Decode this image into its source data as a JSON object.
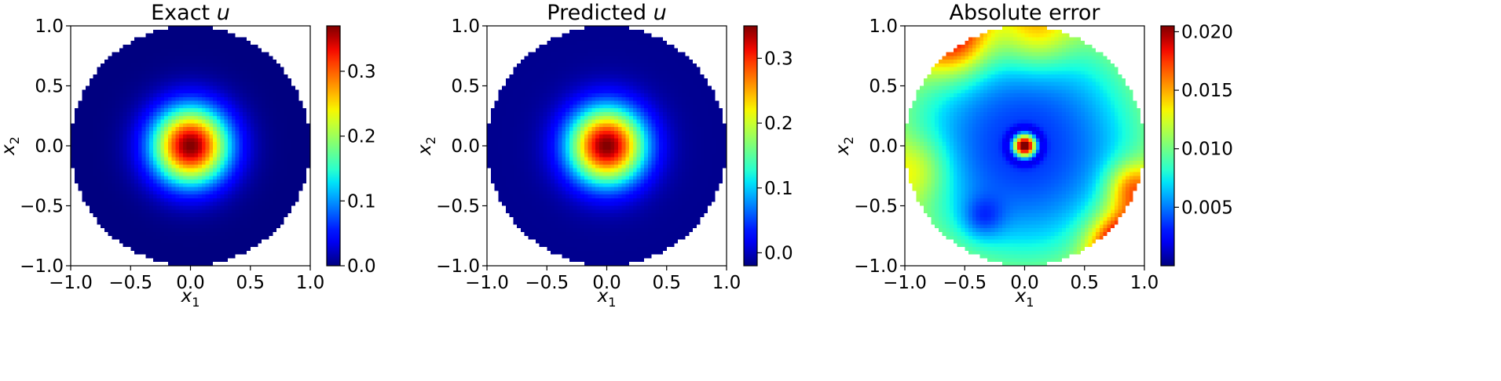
{
  "chart_data": [
    {
      "type": "heatmap",
      "title": "Exact u",
      "title_text": "Exact ",
      "title_var": "u",
      "xlabel": "x1",
      "ylabel": "x2",
      "xlabel_main": "x",
      "xlabel_sub": "1",
      "ylabel_main": "x",
      "ylabel_sub": "2",
      "xlim": [
        -1.0,
        1.0
      ],
      "ylim": [
        -1.0,
        1.0
      ],
      "xticks": [
        -1.0,
        -0.5,
        0.0,
        0.5,
        1.0
      ],
      "xtick_labels": [
        "−1.0",
        "−0.5",
        "0.0",
        "0.5",
        "1.0"
      ],
      "yticks": [
        -1.0,
        -0.5,
        0.0,
        0.5,
        1.0
      ],
      "ytick_labels": [
        "−1.0",
        "−0.5",
        "0.0",
        "0.5",
        "1.0"
      ],
      "domain": "unit disk",
      "colormap": "jet",
      "field": "exact",
      "value_range": [
        0.0,
        0.37
      ],
      "colorbar_ticks": [
        0.0,
        0.1,
        0.2,
        0.3
      ],
      "colorbar_tick_labels": [
        "0.0",
        "0.1",
        "0.2",
        "0.3"
      ]
    },
    {
      "type": "heatmap",
      "title": "Predicted u",
      "title_text": "Predicted ",
      "title_var": "u",
      "xlabel": "x1",
      "ylabel": "x2",
      "xlabel_main": "x",
      "xlabel_sub": "1",
      "ylabel_main": "x",
      "ylabel_sub": "2",
      "xlim": [
        -1.0,
        1.0
      ],
      "ylim": [
        -1.0,
        1.0
      ],
      "xticks": [
        -1.0,
        -0.5,
        0.0,
        0.5,
        1.0
      ],
      "xtick_labels": [
        "−1.0",
        "−0.5",
        "0.0",
        "0.5",
        "1.0"
      ],
      "yticks": [
        -1.0,
        -0.5,
        0.0,
        0.5,
        1.0
      ],
      "ytick_labels": [
        "−1.0",
        "−0.5",
        "0.0",
        "0.5",
        "1.0"
      ],
      "domain": "unit disk",
      "colormap": "jet",
      "field": "predicted",
      "value_range": [
        -0.02,
        0.35
      ],
      "colorbar_ticks": [
        0.0,
        0.1,
        0.2,
        0.3
      ],
      "colorbar_tick_labels": [
        "0.0",
        "0.1",
        "0.2",
        "0.3"
      ]
    },
    {
      "type": "heatmap",
      "title": "Absolute error",
      "title_text": "Absolute error",
      "title_var": "",
      "xlabel": "x1",
      "ylabel": "x2",
      "xlabel_main": "x",
      "xlabel_sub": "1",
      "ylabel_main": "x",
      "ylabel_sub": "2",
      "xlim": [
        -1.0,
        1.0
      ],
      "ylim": [
        -1.0,
        1.0
      ],
      "xticks": [
        -1.0,
        -0.5,
        0.0,
        0.5,
        1.0
      ],
      "xtick_labels": [
        "−1.0",
        "−0.5",
        "0.0",
        "0.5",
        "1.0"
      ],
      "yticks": [
        -1.0,
        -0.5,
        0.0,
        0.5,
        1.0
      ],
      "ytick_labels": [
        "−1.0",
        "−0.5",
        "0.0",
        "0.5",
        "1.0"
      ],
      "domain": "unit disk",
      "colormap": "jet",
      "field": "error",
      "value_range": [
        0.0,
        0.0205
      ],
      "colorbar_ticks": [
        0.005,
        0.01,
        0.015,
        0.02
      ],
      "colorbar_tick_labels": [
        "0.005",
        "0.010",
        "0.015",
        "0.020"
      ]
    }
  ]
}
